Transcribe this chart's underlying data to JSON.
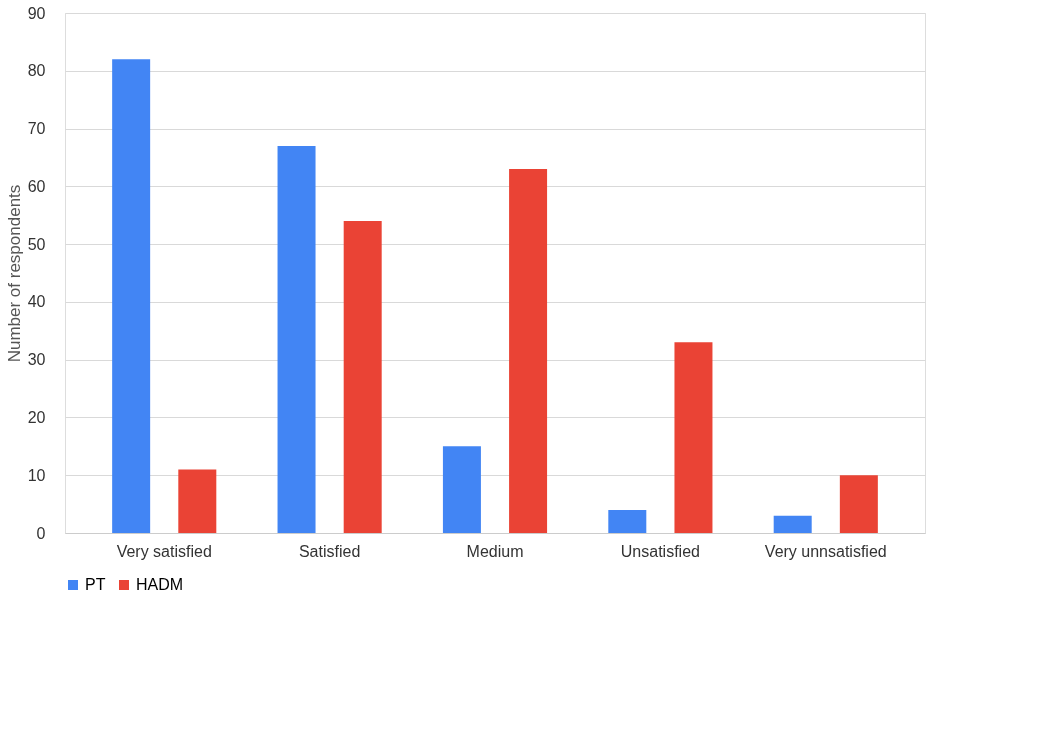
{
  "chart_data": {
    "type": "bar",
    "ylabel": "Number of respondents",
    "categories": [
      "Very satisfied",
      "Satisfied",
      "Medium",
      "Unsatisfied",
      "Very unnsatisfied"
    ],
    "series": [
      {
        "name": "PT",
        "color": "#4285f4",
        "values": [
          82,
          67,
          15,
          4,
          3
        ]
      },
      {
        "name": "HADM",
        "color": "#ea4335",
        "values": [
          11,
          54,
          63,
          33,
          10
        ]
      }
    ],
    "ylim": [
      0,
      90
    ],
    "yticks": [
      0,
      10,
      20,
      30,
      40,
      50,
      60,
      70,
      80,
      90
    ],
    "grid": "y",
    "legend": "bottom"
  }
}
